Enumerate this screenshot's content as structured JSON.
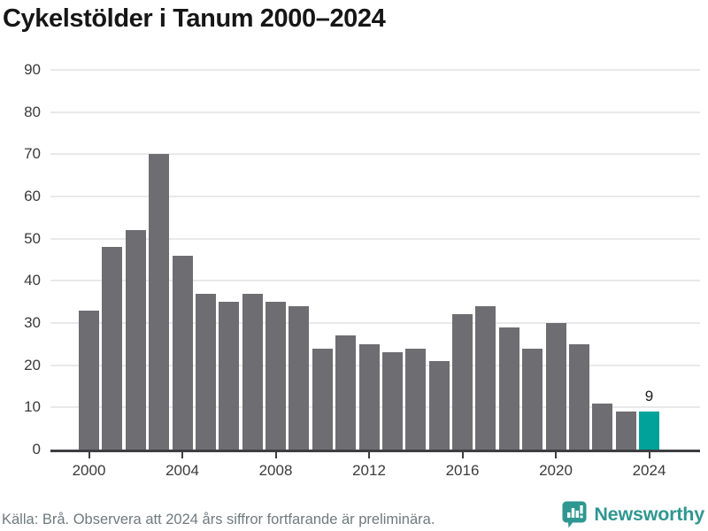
{
  "title": "Cykelstölder i Tanum 2000–2024",
  "caption": "Källa: Brå. Observera att 2024 års siffror fortfarande är preliminära.",
  "branding": {
    "logo_text": "Newsworthy",
    "logo_icon": "newsworthy-bar-chart-bubble-icon"
  },
  "colors": {
    "bar": "#6e6d72",
    "bar_highlight": "#00a299",
    "axis": "#3e3d42",
    "gridline": "#e9e9e9",
    "brand": "#2f9791",
    "caption_text": "#6f7a7e",
    "tick_label": "#3b3b3b",
    "title_text": "#161616"
  },
  "chart_data": {
    "type": "bar",
    "title": "Cykelstölder i Tanum 2000–2024",
    "xlabel": "",
    "ylabel": "",
    "categories": [
      2000,
      2001,
      2002,
      2003,
      2004,
      2005,
      2006,
      2007,
      2008,
      2009,
      2010,
      2011,
      2012,
      2013,
      2014,
      2015,
      2016,
      2017,
      2018,
      2019,
      2020,
      2021,
      2022,
      2023,
      2024
    ],
    "values": [
      33,
      48,
      52,
      70,
      46,
      37,
      35,
      37,
      35,
      34,
      24,
      27,
      25,
      23,
      24,
      21,
      32,
      34,
      29,
      24,
      30,
      25,
      11,
      9,
      9
    ],
    "highlight_index": 24,
    "value_label": {
      "index": 24,
      "text": "9"
    },
    "ylim": [
      0,
      90
    ],
    "yticks": [
      0,
      10,
      20,
      30,
      40,
      50,
      60,
      70,
      80,
      90
    ],
    "xticks": [
      2000,
      2004,
      2008,
      2012,
      2016,
      2020,
      2024
    ],
    "grid": "horizontal",
    "legend": "none"
  }
}
